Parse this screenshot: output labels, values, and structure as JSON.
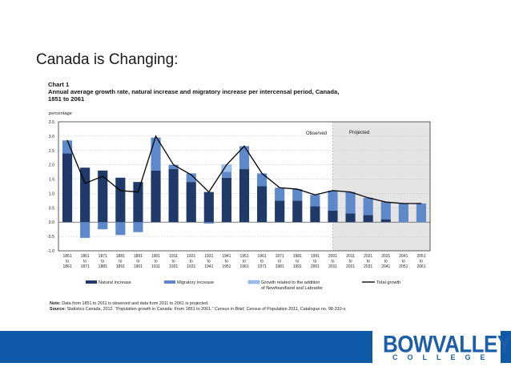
{
  "slide": {
    "title": "Canada is Changing:"
  },
  "chart_data": {
    "type": "bar",
    "chart_label": "Chart 1",
    "title": "Annual average growth rate, natural increase and migratory increase per intercensal period, Canada, 1851 to 2061",
    "ylabel": "percentage",
    "ylim": [
      -1.0,
      3.5
    ],
    "yticks": [
      "3.5",
      "3.0",
      "2.5",
      "2.0",
      "1.5",
      "1.0",
      "0.5",
      "0.0",
      "-0.5",
      "-1.0"
    ],
    "ytick_values": [
      3.5,
      3.0,
      2.5,
      2.0,
      1.5,
      1.0,
      0.5,
      0.0,
      -0.5,
      -1.0
    ],
    "categories": [
      [
        "1851",
        "to",
        "1861"
      ],
      [
        "1861",
        "to",
        "1871"
      ],
      [
        "1871",
        "to",
        "1881"
      ],
      [
        "1881",
        "to",
        "1891"
      ],
      [
        "1891",
        "to",
        "1901"
      ],
      [
        "1901",
        "to",
        "1911"
      ],
      [
        "1911",
        "to",
        "1921"
      ],
      [
        "1921",
        "to",
        "1931"
      ],
      [
        "1931",
        "to",
        "1941"
      ],
      [
        "1941",
        "to",
        "1951"
      ],
      [
        "1951",
        "to",
        "1961"
      ],
      [
        "1961",
        "to",
        "1971"
      ],
      [
        "1971",
        "to",
        "1981"
      ],
      [
        "1981",
        "to",
        "1991"
      ],
      [
        "1991",
        "to",
        "2001"
      ],
      [
        "2001",
        "to",
        "2011"
      ],
      [
        "2011",
        "to",
        "2021"
      ],
      [
        "2021",
        "to",
        "2031"
      ],
      [
        "2031",
        "to",
        "2041"
      ],
      [
        "2041",
        "to",
        "2051"
      ],
      [
        "2051",
        "to",
        "2061"
      ]
    ],
    "series": [
      {
        "name": "Natural increase",
        "color": "#1f3a68",
        "values": [
          2.4,
          1.9,
          1.8,
          1.55,
          1.4,
          1.8,
          1.85,
          1.4,
          1.05,
          1.55,
          1.85,
          1.25,
          0.75,
          0.75,
          0.55,
          0.4,
          0.3,
          0.25,
          0.1,
          0.0,
          0.0
        ]
      },
      {
        "name": "Migratory increase",
        "color": "#5d88c9",
        "values": [
          0.45,
          -0.55,
          -0.25,
          -0.45,
          -0.35,
          1.15,
          0.15,
          0.3,
          -0.05,
          0.2,
          0.8,
          0.45,
          0.45,
          0.4,
          0.4,
          0.7,
          0.75,
          0.6,
          0.6,
          0.65,
          0.65
        ]
      },
      {
        "name": "Growth related to the addition of Newfoundland and Labrador",
        "color": "#9dc1ec",
        "values": [
          0,
          0,
          0,
          0,
          0,
          0,
          0,
          0,
          0,
          0.25,
          0,
          0,
          0,
          0,
          0,
          0,
          0,
          0,
          0,
          0,
          0
        ]
      },
      {
        "name": "Total growth",
        "type": "line",
        "color": "#000000",
        "values": [
          2.85,
          1.35,
          1.6,
          1.1,
          1.05,
          3.0,
          2.0,
          1.65,
          1.05,
          2.0,
          2.65,
          1.7,
          1.2,
          1.15,
          0.95,
          1.1,
          1.05,
          0.85,
          0.7,
          0.65,
          0.65
        ]
      }
    ],
    "legend": {
      "natural": "Natural increase",
      "migratory": "Migratory increase",
      "newfoundland_line1": "Growth related to the addition",
      "newfoundland_line2": "of Newfoundland and Labrador",
      "total": "Total growth"
    },
    "observed_label": "Observed",
    "projected_label": "Projected",
    "projected_start_index": 16,
    "projected_shade": "#e4e4e4",
    "grid": true
  },
  "note": {
    "note_label": "Note:",
    "note_text": "Data from 1851 to 2011 is observed and data from 2011 to 2061 is projected.",
    "source_label": "Source:",
    "source_text_1": "Statistics Canada, 2012. “Population growth in Canada: From 1851 to 2061,”",
    "source_italic": "Census in Brief,",
    "source_text_2": "Census of Population 2011, Catalogue no. 98-310-x."
  },
  "footer": {
    "logo_top": "BOWVALLEY",
    "logo_bottom": "COLLEGE",
    "brand_color": "#0f5aa8"
  }
}
